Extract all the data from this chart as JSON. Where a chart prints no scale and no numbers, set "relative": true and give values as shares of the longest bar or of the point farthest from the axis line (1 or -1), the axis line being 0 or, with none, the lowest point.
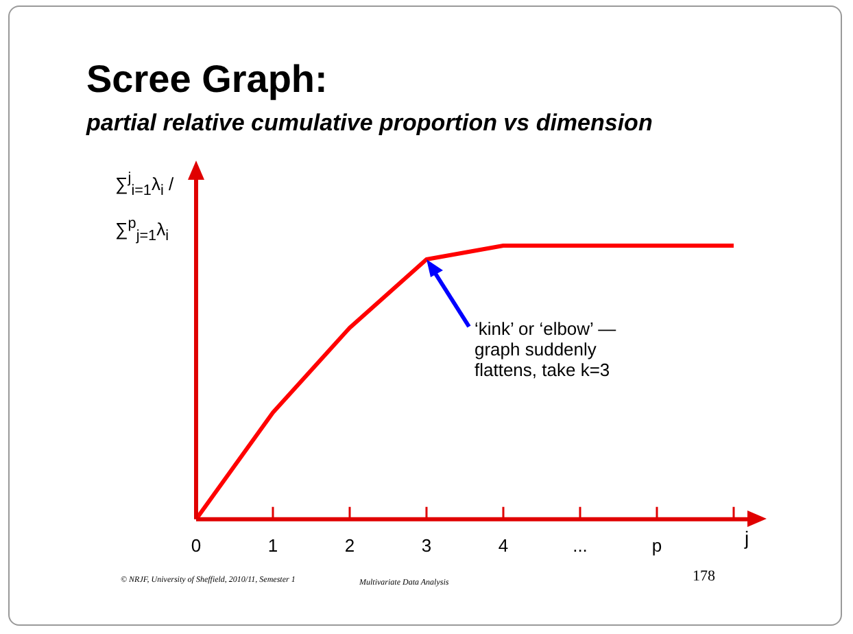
{
  "chart_data": {
    "type": "line",
    "title": "Scree Graph:",
    "subtitle": "partial relative cumulative proportion vs dimension",
    "ylabel": "∑$^{j}$$_{i=1}$λ$_{i}$ / ∑$^{p}$$_{j=1}$λ$_{i}$",
    "xlabel": "j",
    "categories": [
      "0",
      "1",
      "2",
      "3",
      "4",
      "...",
      "p",
      null
    ],
    "relative": true,
    "series": [
      {
        "color": "#ff0000",
        "values": [
          0,
          0.39,
          0.7,
          0.95,
          1,
          1,
          1,
          1
        ]
      }
    ],
    "marker": "none",
    "line_style": "solid",
    "legend": false,
    "grid": false,
    "annotations": [
      "‘kink’ or ‘elbow’ — graph suddenly flattens, take k=3",
      "© NRJF, University of Sheffield, 2010/11, Semester 1",
      "Multivariate Data Analysis",
      "178"
    ]
  }
}
